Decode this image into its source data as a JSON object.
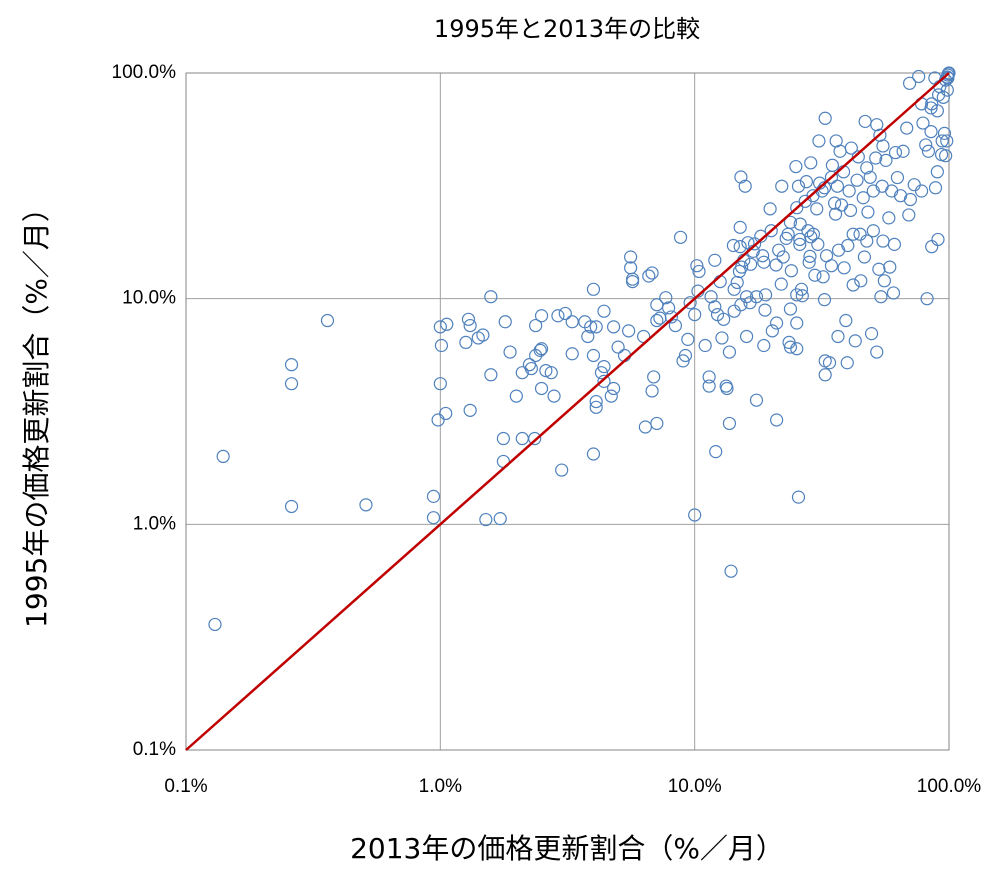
{
  "chart_data": {
    "type": "scatter",
    "title": "1995年と2013年の比較",
    "x_label": "2013年の価格更新割合（%／月）",
    "y_label": "1995年の価格更新割合（%／月）",
    "xscale": "log",
    "yscale": "log",
    "grid": true,
    "color": "#4f81bd",
    "xlim": [
      0.1,
      100
    ],
    "ylim": [
      0.1,
      100
    ],
    "xticks": [
      {
        "value": 0.1,
        "label": "0.1%"
      },
      {
        "value": 1,
        "label": "1.0%"
      },
      {
        "value": 10,
        "label": "10.0%"
      },
      {
        "value": 100,
        "label": "100.0%"
      }
    ],
    "yticks": [
      {
        "value": 0.1,
        "label": "0.1%"
      },
      {
        "value": 1,
        "label": "1.0%"
      },
      {
        "value": 10,
        "label": "10.0%"
      },
      {
        "value": 100,
        "label": "100.0%"
      }
    ],
    "reference_line": {
      "color": "#c00000",
      "x": [
        0.1,
        100
      ],
      "values": [
        0.1,
        100
      ]
    },
    "x": [
      0.13,
      0.14,
      0.26,
      0.26,
      0.26,
      0.36,
      0.51,
      0.94,
      0.94,
      0.98,
      1.0,
      1.01,
      1.0,
      1.05,
      1.06,
      1.26,
      1.29,
      1.31,
      1.31,
      1.41,
      1.47,
      1.51,
      1.58,
      1.58,
      1.72,
      1.77,
      1.77,
      1.8,
      1.88,
      1.99,
      2.1,
      2.1,
      2.24,
      2.28,
      2.35,
      2.37,
      2.37,
      2.47,
      2.5,
      2.5,
      2.5,
      2.6,
      2.73,
      2.8,
      2.9,
      3.0,
      3.1,
      3.3,
      3.3,
      3.7,
      3.8,
      3.9,
      4.0,
      4.0,
      4.0,
      4.1,
      4.1,
      4.1,
      4.3,
      4.4,
      4.4,
      4.4,
      4.7,
      4.8,
      4.8,
      5.0,
      5.3,
      5.5,
      5.6,
      5.6,
      5.7,
      5.7,
      6.3,
      6.4,
      6.6,
      6.8,
      6.8,
      6.9,
      7.1,
      7.1,
      7.1,
      7.3,
      7.7,
      7.9,
      8.1,
      8.4,
      8.8,
      9.0,
      9.2,
      9.4,
      9.6,
      10,
      10,
      10.2,
      10.3,
      10.4,
      11,
      11.4,
      11.4,
      11.6,
      12,
      12,
      12.1,
      12.3,
      12.6,
      12.8,
      13,
      13.3,
      13.4,
      13.7,
      13.7,
      13.9,
      14.2,
      14.3,
      14.3,
      14.7,
      15,
      15.1,
      15.1,
      15.2,
      15.2,
      15.3,
      15.6,
      15.8,
      16,
      16,
      16.2,
      16.5,
      16.6,
      17,
      17.2,
      17.5,
      18.2,
      18.5,
      18.7,
      18.9,
      19,
      17.5,
      18.7,
      19.8,
      20,
      20.2,
      20.9,
      21,
      21,
      21.4,
      21.9,
      22,
      22.3,
      22.9,
      23.3,
      23.5,
      23.8,
      23.8,
      24,
      23.8,
      25,
      25.2,
      25.2,
      25.2,
      25.2,
      25.6,
      25.6,
      25.9,
      25.9,
      26,
      26.3,
      26.5,
      27.2,
      27.5,
      27.9,
      28.2,
      28.4,
      28.6,
      28.6,
      29.2,
      29.3,
      29.7,
      30.2,
      30.5,
      30.8,
      31,
      31.7,
      32,
      32.4,
      32.4,
      32.6,
      32.6,
      32.6,
      33,
      33.9,
      34.5,
      34.5,
      34.8,
      35.5,
      35.8,
      36,
      36.4,
      36.6,
      36.8,
      37.3,
      37.8,
      38.5,
      38.7,
      39.3,
      39.8,
      40,
      40.5,
      41,
      41.3,
      42,
      42,
      42.8,
      43.5,
      44,
      44.7,
      45,
      46,
      46.5,
      46.8,
      47.5,
      47.5,
      48,
      49,
      49.6,
      50.4,
      50.4,
      51.5,
      52,
      52,
      53,
      53.5,
      54,
      54.6,
      55,
      55,
      55.7,
      56.5,
      58,
      58.5,
      59.5,
      60.5,
      61,
      61.6,
      62.7,
      64.5,
      66,
      68.2,
      69.5,
      70,
      70.5,
      73,
      76,
      78,
      79,
      81,
      82,
      83,
      85,
      85.5,
      88,
      88.5,
      90,
      90.5,
      92,
      93.5,
      94,
      95,
      96,
      97,
      98,
      98.5,
      99,
      99.5,
      100,
      98.5,
      99,
      97,
      85.5,
      78,
      85,
      91,
      90
    ],
    "values": [
      0.36,
      2.0,
      5.1,
      4.2,
      1.2,
      8.0,
      1.22,
      1.33,
      1.07,
      2.9,
      7.5,
      6.2,
      4.2,
      3.1,
      7.7,
      6.4,
      8.1,
      7.6,
      3.2,
      6.7,
      6.9,
      1.05,
      10.2,
      4.6,
      1.06,
      2.4,
      1.9,
      7.9,
      5.8,
      3.7,
      2.4,
      4.7,
      5.1,
      4.9,
      2.4,
      7.6,
      5.6,
      5.9,
      6.0,
      8.4,
      4.0,
      4.8,
      4.7,
      3.7,
      8.4,
      1.74,
      8.6,
      7.9,
      5.7,
      7.9,
      6.8,
      7.5,
      5.6,
      2.05,
      11.0,
      7.5,
      3.5,
      3.3,
      4.7,
      8.8,
      5.0,
      4.3,
      3.7,
      4.0,
      7.5,
      6.1,
      5.6,
      7.2,
      13.7,
      15.3,
      11.9,
      12.2,
      6.8,
      2.7,
      12.6,
      13.0,
      3.9,
      4.5,
      9.4,
      8.0,
      2.8,
      8.2,
      10.1,
      9.1,
      8.3,
      7.6,
      18.7,
      5.3,
      5.6,
      6.6,
      9.6,
      8.5,
      1.1,
      14.0,
      10.8,
      13.2,
      6.2,
      4.5,
      4.1,
      10.2,
      14.8,
      9.2,
      2.1,
      8.5,
      11.9,
      6.7,
      8.1,
      4.1,
      4.0,
      5.8,
      2.8,
      0.62,
      17.2,
      8.8,
      11.0,
      11.8,
      13.2,
      20.7,
      17.0,
      34.6,
      9.4,
      13.8,
      14.8,
      31.5,
      10.2,
      6.8,
      17.7,
      9.6,
      14.2,
      16.2,
      17.5,
      10.2,
      18.9,
      15.5,
      14.5,
      8.9,
      10.4,
      3.55,
      6.2,
      25.0,
      20,
      7.2,
      14.1,
      7.8,
      2.9,
      16.4,
      11.6,
      31.5,
      15.3,
      18.5,
      19.3,
      6.4,
      6.1,
      9.0,
      13.3,
      21.8,
      38.5,
      7.8,
      6.0,
      10.4,
      25.3,
      1.32,
      31.5,
      18.3,
      17.4,
      21.4,
      11.0,
      10.3,
      27,
      33,
      20,
      14.5,
      15.4,
      18.8,
      40,
      28.6,
      19.3,
      12.7,
      25,
      17.4,
      50,
      32.5,
      30,
      12.5,
      9.9,
      31,
      63,
      4.6,
      5.3,
      15.5,
      5.2,
      34.5,
      14,
      39,
      26.5,
      23.7,
      50,
      31.5,
      6.8,
      16.4,
      45,
      26,
      36.5,
      13.7,
      8.0,
      5.2,
      17.2,
      30,
      24.6,
      46.5,
      19.3,
      11.5,
      6.5,
      33.5,
      42.5,
      19.3,
      12,
      28,
      15.3,
      61,
      18,
      38,
      24.2,
      34.5,
      7.0,
      20,
      30,
      42,
      59,
      5.8,
      13.5,
      53,
      10.2,
      31.5,
      18,
      47.5,
      12,
      41,
      22.8,
      13.8,
      30,
      10.6,
      17.4,
      44.4,
      34.4,
      28.6,
      45,
      57,
      23.5,
      90,
      27.5,
      32,
      96.5,
      73,
      60,
      48,
      10,
      45,
      70,
      73,
      95,
      31,
      36.5,
      18.3,
      87,
      43.5,
      50,
      78,
      54,
      93,
      50,
      84,
      98,
      99.5,
      100,
      96,
      95,
      43,
      17,
      30,
      55,
      80,
      68
    ]
  }
}
